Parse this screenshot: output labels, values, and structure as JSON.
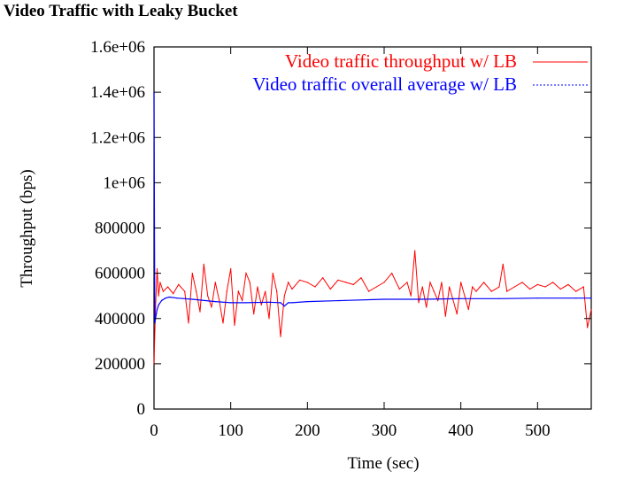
{
  "figure_title": "Video Traffic with Leaky Bucket",
  "chart_data": {
    "type": "line",
    "xlabel": "Time (sec)",
    "ylabel": "Throughput (bps)",
    "xlim": [
      0,
      570
    ],
    "ylim": [
      0,
      1600000
    ],
    "x_ticks": [
      0,
      100,
      200,
      300,
      400,
      500
    ],
    "x_tick_labels": [
      "0",
      "100",
      "200",
      "300",
      "400",
      "500"
    ],
    "y_ticks": [
      0,
      200000,
      400000,
      600000,
      800000,
      1000000,
      1200000,
      1400000,
      1600000
    ],
    "y_tick_labels": [
      "0",
      "200000",
      "400000",
      "600000",
      "800000",
      "1e+06",
      "1.2e+06",
      "1.4e+06",
      "1.6e+06"
    ],
    "grid": false,
    "legend_position": "top-right",
    "colors": {
      "throughput": "#ff0000",
      "average": "#0000ff"
    },
    "series": [
      {
        "name": "Video traffic throughput w/ LB",
        "color": "#ff0000",
        "x": [
          0,
          2,
          4,
          6,
          8,
          12,
          18,
          25,
          32,
          40,
          45,
          50,
          55,
          60,
          65,
          70,
          75,
          80,
          85,
          90,
          95,
          100,
          105,
          110,
          115,
          120,
          125,
          130,
          135,
          140,
          145,
          150,
          155,
          160,
          165,
          170,
          175,
          180,
          190,
          200,
          210,
          220,
          230,
          240,
          250,
          260,
          270,
          280,
          290,
          300,
          310,
          320,
          330,
          335,
          340,
          345,
          350,
          355,
          360,
          365,
          370,
          375,
          380,
          385,
          390,
          395,
          400,
          405,
          410,
          415,
          420,
          425,
          430,
          440,
          450,
          455,
          460,
          470,
          480,
          490,
          500,
          510,
          520,
          530,
          540,
          550,
          560,
          565,
          570
        ],
        "y": [
          200000,
          450000,
          620000,
          500000,
          560000,
          520000,
          540000,
          510000,
          550000,
          520000,
          380000,
          600000,
          520000,
          430000,
          640000,
          500000,
          450000,
          560000,
          480000,
          380000,
          520000,
          620000,
          370000,
          520000,
          480000,
          600000,
          560000,
          420000,
          540000,
          460000,
          520000,
          400000,
          600000,
          520000,
          320000,
          500000,
          560000,
          530000,
          570000,
          560000,
          540000,
          580000,
          530000,
          570000,
          560000,
          550000,
          580000,
          520000,
          540000,
          560000,
          600000,
          530000,
          560000,
          500000,
          700000,
          470000,
          540000,
          450000,
          560000,
          520000,
          480000,
          560000,
          410000,
          540000,
          480000,
          420000,
          560000,
          500000,
          440000,
          540000,
          520000,
          540000,
          560000,
          520000,
          540000,
          640000,
          520000,
          540000,
          560000,
          530000,
          550000,
          540000,
          560000,
          530000,
          550000,
          520000,
          540000,
          360000,
          440000
        ]
      },
      {
        "name": "Video traffic overall average w/ LB",
        "color": "#0000ff",
        "x": [
          0,
          1,
          2,
          4,
          6,
          10,
          15,
          20,
          30,
          50,
          80,
          100,
          120,
          150,
          165,
          170,
          175,
          180,
          200,
          250,
          300,
          350,
          400,
          450,
          500,
          550,
          570
        ],
        "y": [
          1400000,
          380000,
          400000,
          440000,
          460000,
          480000,
          490000,
          495000,
          490000,
          485000,
          475000,
          470000,
          470000,
          472000,
          470000,
          455000,
          470000,
          470000,
          475000,
          480000,
          485000,
          485000,
          488000,
          488000,
          490000,
          490000,
          490000
        ]
      }
    ]
  }
}
